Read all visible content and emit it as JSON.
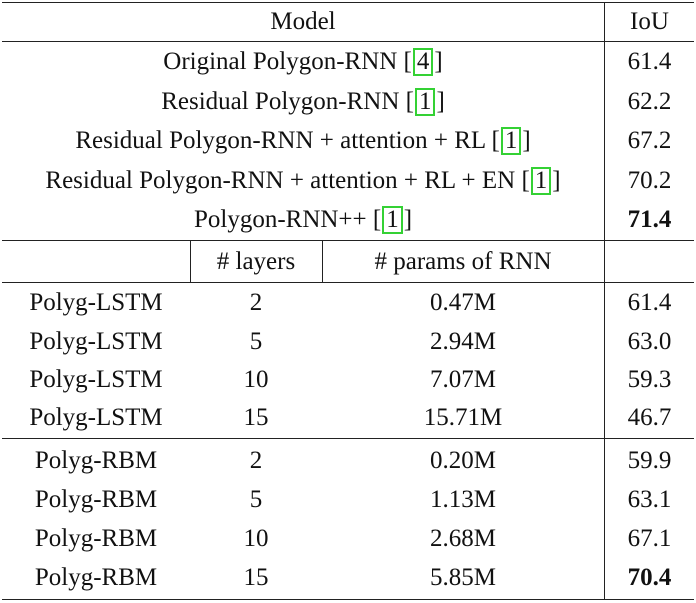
{
  "header": {
    "model_label": "Model",
    "iou_label": "IoU"
  },
  "top_rows": [
    {
      "pre": "Original Polygon-RNN [",
      "ref": "4",
      "post": "]",
      "iou": "61.4"
    },
    {
      "pre": "Residual Polygon-RNN [",
      "ref": "1",
      "post": "]",
      "iou": "62.2"
    },
    {
      "pre": "Residual Polygon-RNN + attention + RL [",
      "ref": "1",
      "post": "]",
      "iou": "67.2"
    },
    {
      "pre": "Residual Polygon-RNN + attention + RL + EN [",
      "ref": "1",
      "post": "]",
      "iou": "70.2"
    },
    {
      "pre": "Polygon-RNN++ [",
      "ref": "1",
      "post": "]",
      "iou": "71.4"
    }
  ],
  "sub_header": {
    "layers_label": "# layers",
    "params_label": "# params of RNN"
  },
  "lstm_rows": [
    {
      "model": "Polyg-LSTM",
      "layers": "2",
      "params": "0.47M",
      "iou": "61.4"
    },
    {
      "model": "Polyg-LSTM",
      "layers": "5",
      "params": "2.94M",
      "iou": "63.0"
    },
    {
      "model": "Polyg-LSTM",
      "layers": "10",
      "params": "7.07M",
      "iou": "59.3"
    },
    {
      "model": "Polyg-LSTM",
      "layers": "15",
      "params": "15.71M",
      "iou": "46.7"
    }
  ],
  "rbm_rows": [
    {
      "model": "Polyg-RBM",
      "layers": "2",
      "params": "0.20M",
      "iou": "59.9"
    },
    {
      "model": "Polyg-RBM",
      "layers": "5",
      "params": "1.13M",
      "iou": "63.1"
    },
    {
      "model": "Polyg-RBM",
      "layers": "10",
      "params": "2.68M",
      "iou": "67.1"
    },
    {
      "model": "Polyg-RBM",
      "layers": "15",
      "params": "5.85M",
      "iou": "70.4"
    }
  ],
  "colors": {
    "ref_box": "#34d134",
    "rule": "#222222"
  }
}
